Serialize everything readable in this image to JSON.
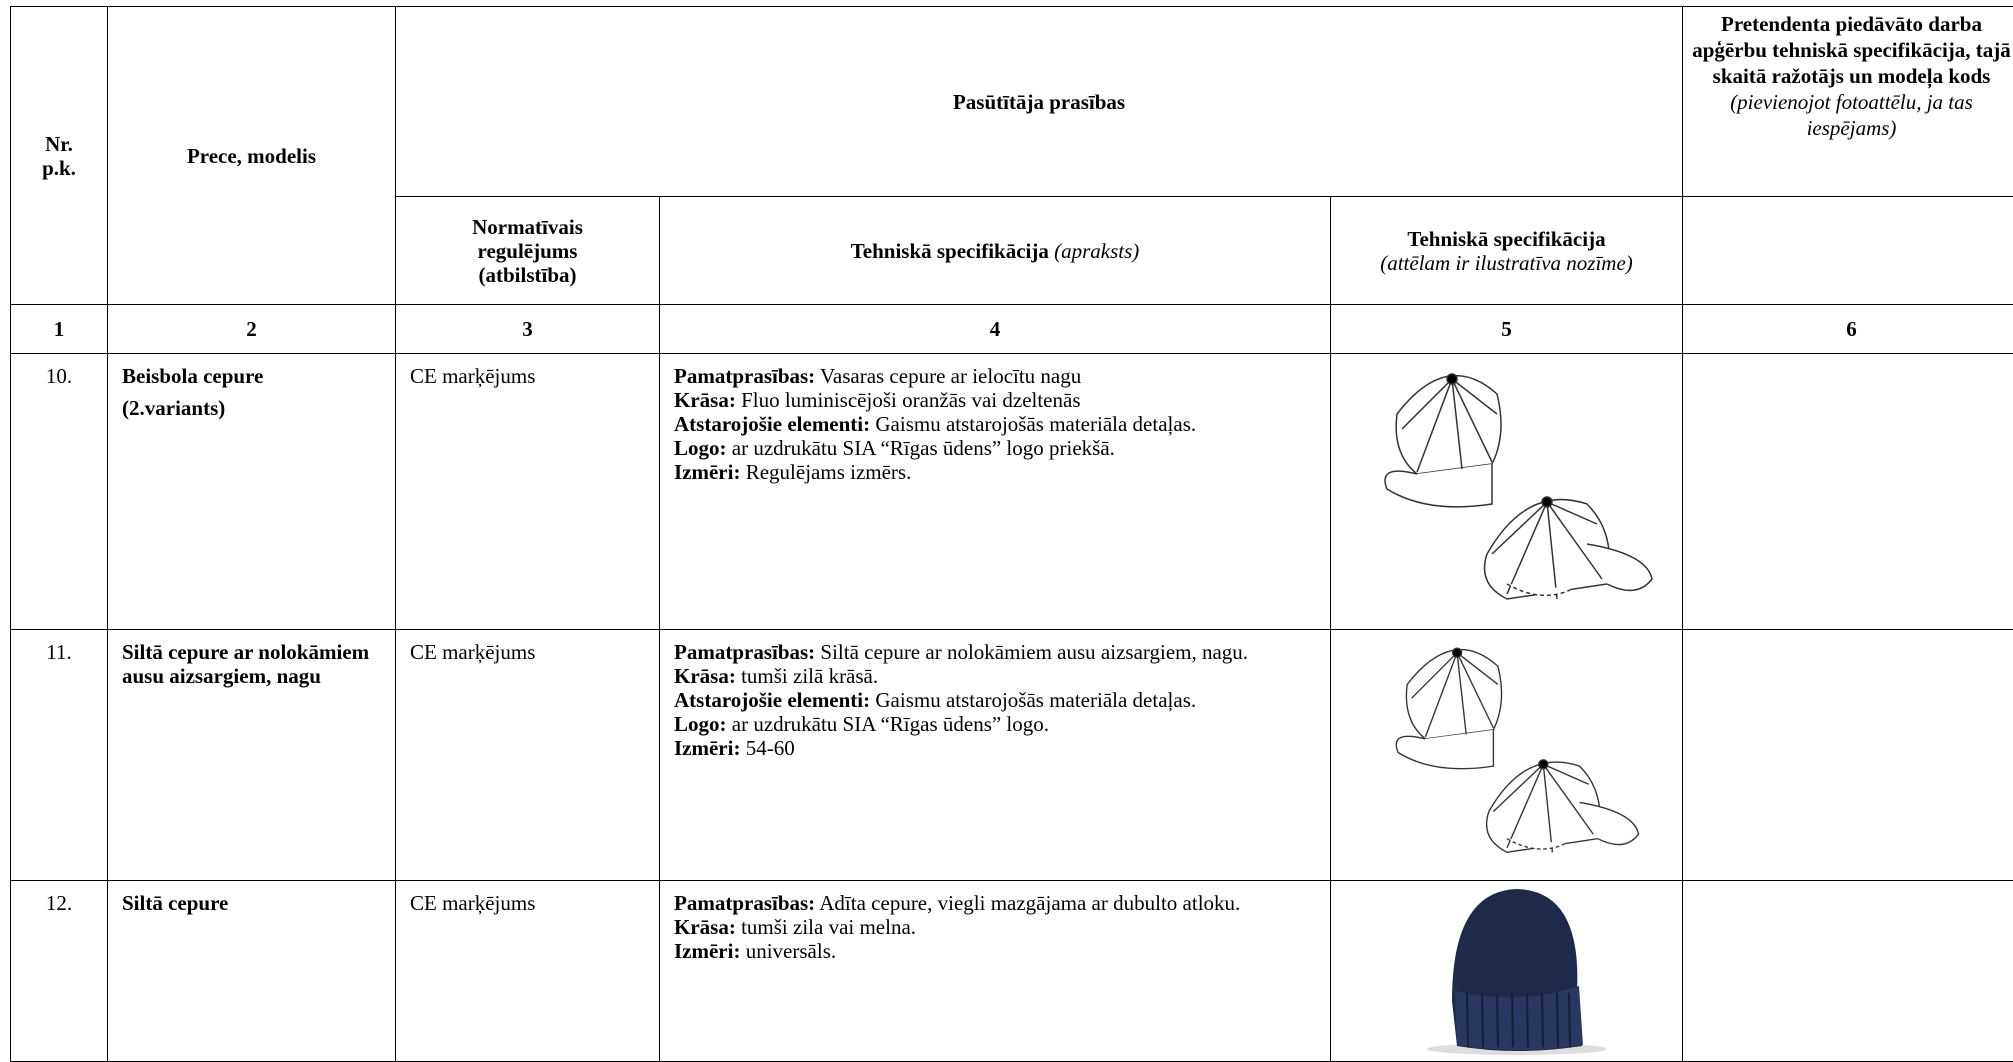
{
  "header": {
    "nr": [
      "Nr.",
      "p.k."
    ],
    "prece": "Prece, modelis",
    "pasutitaja": "Pasūtītāja prasības",
    "pretendenta": {
      "title": "Pretendenta piedāvāto darba apģērbu tehniskā specifikācija, tajā skaitā ražotājs un modeļa kods",
      "note": "(pievienojot fotoattēlu, ja tas iespējams)"
    },
    "normativais": "Normatīvais regulējums (atbilstība)",
    "spec_apraksts": {
      "title": "Tehniskā specifikācija",
      "note": "(apraksts)"
    },
    "spec_attels": {
      "title": "Tehniskā specifikācija",
      "note": "(attēlam ir ilustratīva nozīme)"
    }
  },
  "column_numbers": [
    "1",
    "2",
    "3",
    "4",
    "5",
    "6"
  ],
  "rows": [
    {
      "nr": "10.",
      "name": [
        "Beisbola cepure",
        "(2.variants)"
      ],
      "norm": "CE marķējums",
      "spec": [
        {
          "label": "Pamatprasības:",
          "text": "Vasaras cepure ar ielocītu nagu"
        },
        {
          "label": "Krāsa:",
          "text": "Fluo luminiscējoši oranžās vai dzeltenās"
        },
        {
          "label": "Atstarojošie elementi:",
          "text": "Gaismu atstarojošās materiāla detaļas."
        },
        {
          "label": "Logo:",
          "text": "ar uzdrukātu SIA “Rīgas ūdens” logo priekšā."
        },
        {
          "label": "Izmēri:",
          "text": "Regulējams izmērs."
        }
      ]
    },
    {
      "nr": "11.",
      "name": [
        "Siltā cepure ar nolokāmiem ausu aizsargiem, nagu"
      ],
      "norm": "CE marķējums",
      "spec": [
        {
          "label": "Pamatprasības:",
          "text": "Siltā cepure ar nolokāmiem ausu aizsargiem, nagu."
        },
        {
          "label": "Krāsa:",
          "text": "tumši zilā krāsā."
        },
        {
          "label": "Atstarojošie elementi:",
          "text": "Gaismu atstarojošās materiāla detaļas."
        },
        {
          "label": "Logo:",
          "text": "ar uzdrukātu SIA “Rīgas ūdens” logo."
        },
        {
          "label": "Izmēri:",
          "text": "54-60"
        }
      ]
    },
    {
      "nr": "12.",
      "name": [
        "Siltā cepure"
      ],
      "norm": "CE marķējums",
      "spec": [
        {
          "label": "Pamatprasības:",
          "text": "Adīta cepure, viegli mazgājama ar dubulto atloku."
        },
        {
          "label": "Krāsa:",
          "text": "tumši zila vai melna."
        },
        {
          "label": "Izmēri:",
          "text": "universāls."
        }
      ]
    }
  ]
}
